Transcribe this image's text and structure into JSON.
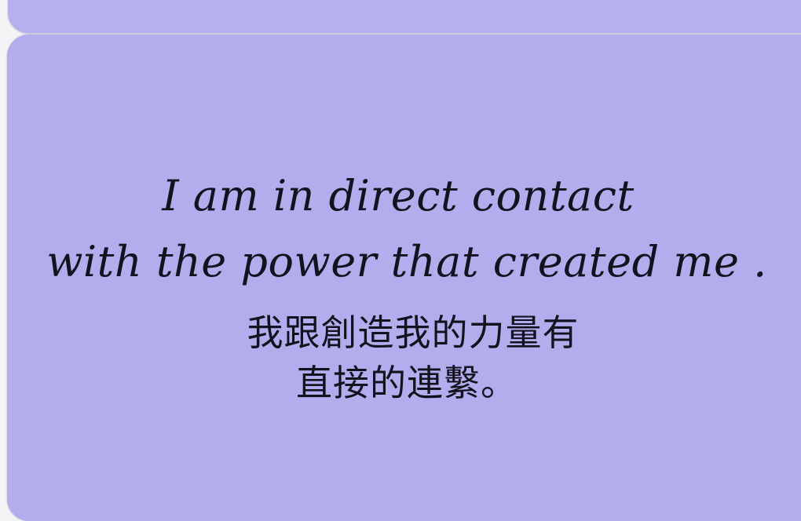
{
  "card": {
    "color": "#b2aeee",
    "english_line_1": "I am in direct contact",
    "english_line_2": "with the power that created me .",
    "chinese_line_1": "我跟創造我的力量有",
    "chinese_line_2": "直接的連繫。"
  }
}
